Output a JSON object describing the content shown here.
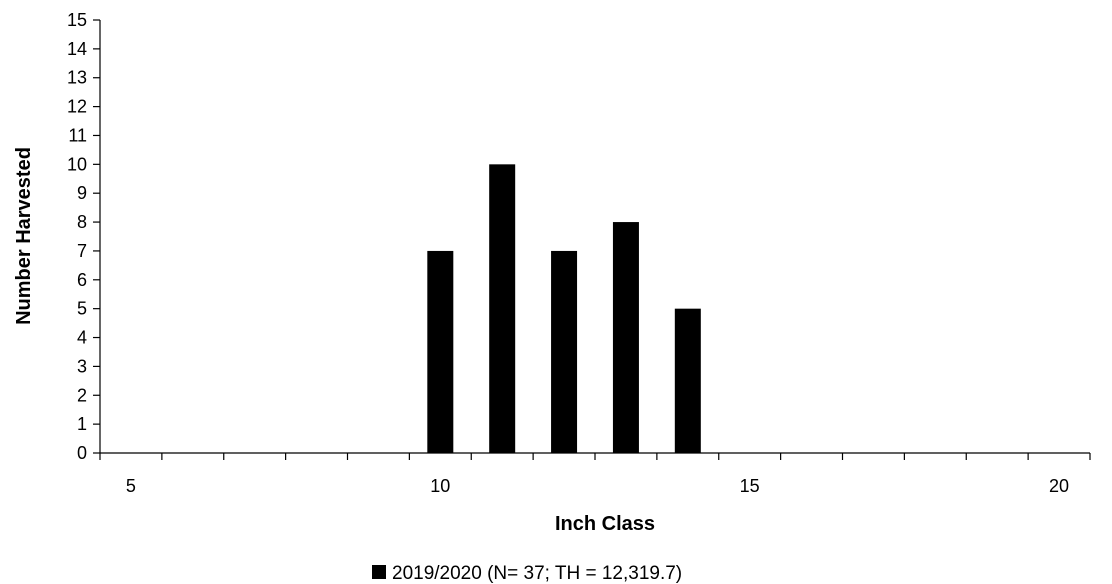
{
  "chart_data": {
    "type": "bar",
    "title": "",
    "xlabel": "Inch Class",
    "ylabel": "Number Harvested",
    "xlim": [
      4.5,
      20.5
    ],
    "ylim": [
      0,
      15
    ],
    "x_ticks": [
      5,
      10,
      15,
      20
    ],
    "x_minor_ticks": [
      5,
      6,
      7,
      8,
      9,
      10,
      11,
      12,
      13,
      14,
      15,
      16,
      17,
      18,
      19,
      20
    ],
    "y_ticks": [
      0,
      1,
      2,
      3,
      4,
      5,
      6,
      7,
      8,
      9,
      10,
      11,
      12,
      13,
      14,
      15
    ],
    "grid": false,
    "legend_position": "bottom",
    "series": [
      {
        "name": "2019/2020 (N= 37; TH = 12,319.7)",
        "color": "#000000",
        "x": [
          10,
          11,
          12,
          13,
          14
        ],
        "values": [
          7,
          10,
          7,
          8,
          5
        ]
      }
    ]
  }
}
